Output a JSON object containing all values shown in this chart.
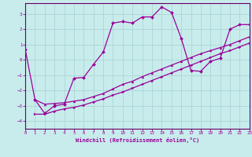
{
  "xlabel": "Windchill (Refroidissement éolien,°C)",
  "background_color": "#c8ecec",
  "grid_color": "#b0d8d8",
  "line_color": "#990099",
  "spine_color": "#660066",
  "xlim": [
    0,
    23
  ],
  "ylim": [
    -4.5,
    3.7
  ],
  "xticks": [
    0,
    1,
    2,
    3,
    4,
    5,
    6,
    7,
    8,
    9,
    10,
    11,
    12,
    13,
    14,
    15,
    16,
    17,
    18,
    19,
    20,
    21,
    22,
    23
  ],
  "yticks": [
    -4,
    -3,
    -2,
    -1,
    0,
    1,
    2,
    3
  ],
  "series1_x": [
    0,
    1,
    2,
    3,
    4,
    5,
    6,
    7,
    8,
    9,
    10,
    11,
    12,
    13,
    14,
    15,
    16,
    17,
    18,
    19,
    20,
    21,
    22,
    23
  ],
  "series1_y": [
    0.7,
    -2.6,
    -3.5,
    -3.0,
    -2.9,
    -1.2,
    -1.15,
    -0.3,
    0.5,
    2.4,
    2.5,
    2.4,
    2.8,
    2.8,
    3.45,
    3.1,
    1.4,
    -0.7,
    -0.75,
    -0.1,
    0.1,
    2.0,
    2.3,
    2.3
  ],
  "series2_x": [
    1,
    2,
    3,
    4,
    5,
    6,
    7,
    8,
    9,
    10,
    11,
    12,
    13,
    14,
    15,
    16,
    17,
    18,
    19,
    20,
    21,
    22,
    23
  ],
  "series2_y": [
    -2.6,
    -2.9,
    -2.85,
    -2.8,
    -2.7,
    -2.6,
    -2.4,
    -2.2,
    -1.9,
    -1.6,
    -1.4,
    -1.1,
    -0.85,
    -0.6,
    -0.35,
    -0.1,
    0.15,
    0.4,
    0.6,
    0.8,
    1.0,
    1.25,
    1.5
  ],
  "series3_x": [
    1,
    2,
    3,
    4,
    5,
    6,
    7,
    8,
    9,
    10,
    11,
    12,
    13,
    14,
    15,
    16,
    17,
    18,
    19,
    20,
    21,
    22,
    23
  ],
  "series3_y": [
    -3.55,
    -3.55,
    -3.35,
    -3.2,
    -3.1,
    -2.95,
    -2.75,
    -2.55,
    -2.3,
    -2.1,
    -1.85,
    -1.6,
    -1.35,
    -1.1,
    -0.85,
    -0.6,
    -0.35,
    -0.1,
    0.15,
    0.4,
    0.6,
    0.85,
    1.1
  ]
}
